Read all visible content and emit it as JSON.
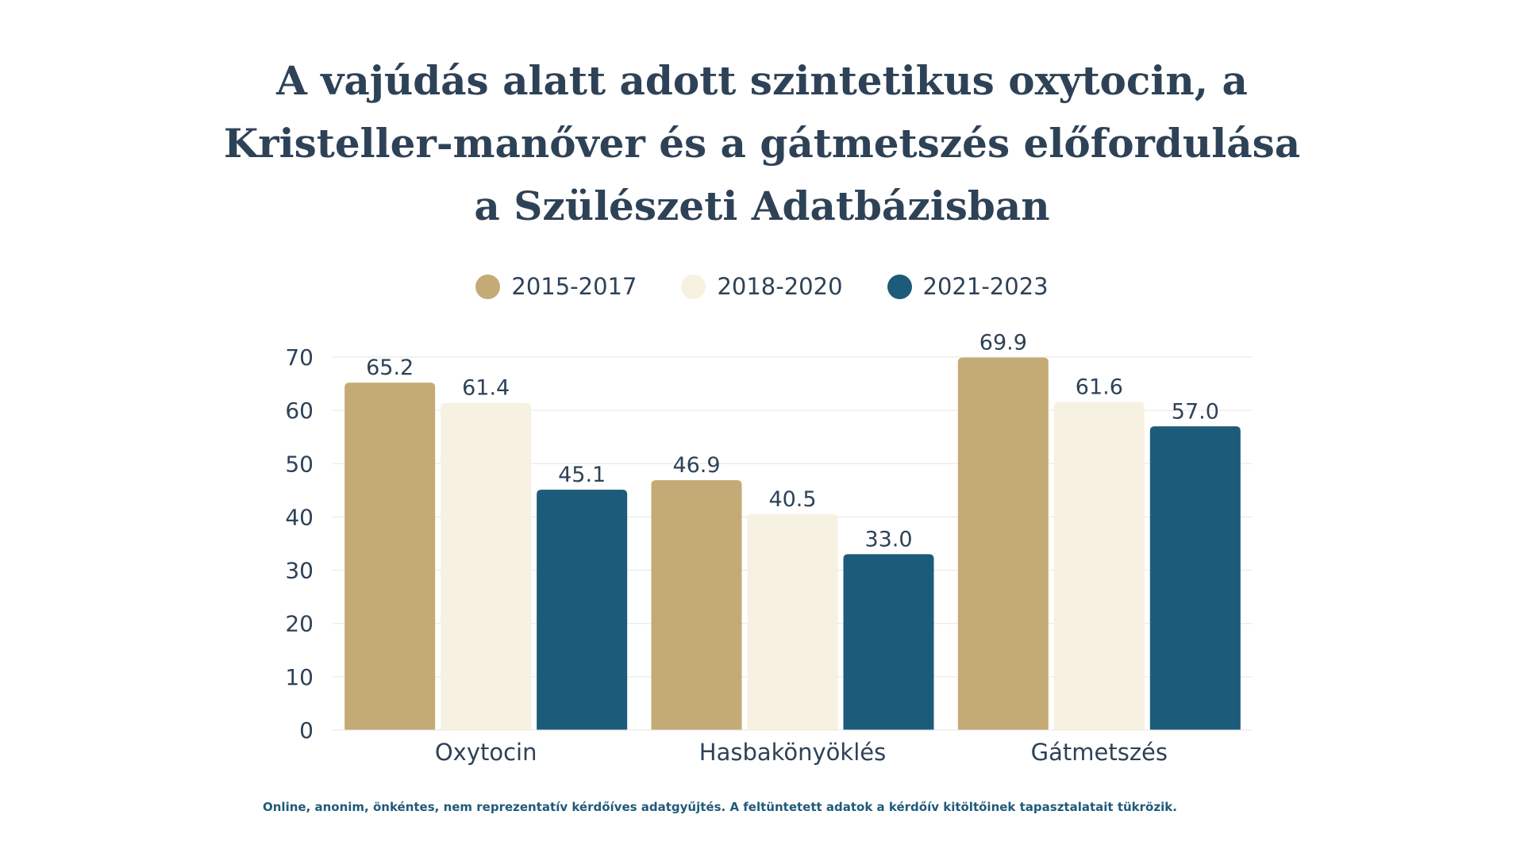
{
  "chart_data": {
    "type": "bar",
    "title": "A vajúdás alatt adott szintetikus oxytocin, a Kristeller-manőver és a gátmetszés előfordulása a Szülészeti Adatbázisban",
    "categories": [
      "Oxytocin",
      "Hasbakönyöklés",
      "Gátmetszés"
    ],
    "series": [
      {
        "name": "2015-2017",
        "values": [
          65.2,
          46.9,
          69.9
        ],
        "labels": [
          "65.2",
          "46.9",
          "69.9"
        ],
        "color": "#c4aa74"
      },
      {
        "name": "2018-2020",
        "values": [
          61.4,
          40.5,
          61.6
        ],
        "labels": [
          "61.4",
          "40.5",
          "61.6"
        ],
        "color": "#f7f1e1"
      },
      {
        "name": "2021-2023",
        "values": [
          45.1,
          33.0,
          57.0
        ],
        "labels": [
          "45.1",
          "33.0",
          "57.0"
        ],
        "color": "#1d5b7a"
      }
    ],
    "yticks": [
      0,
      10,
      20,
      30,
      40,
      50,
      60,
      70
    ],
    "ylim": [
      0,
      70
    ],
    "grid": true,
    "legend": "top-center"
  },
  "footnote": "Online, anonim, önkéntes, nem reprezentatív kérdőíves adatgyűjtés. A feltüntetett adatok a kérdőív kitöltőinek tapasztalatait tükrözik.",
  "colors": {
    "text": "#2e4257",
    "grid": "#e6e6e6",
    "footnote": "#1f5a7a"
  }
}
